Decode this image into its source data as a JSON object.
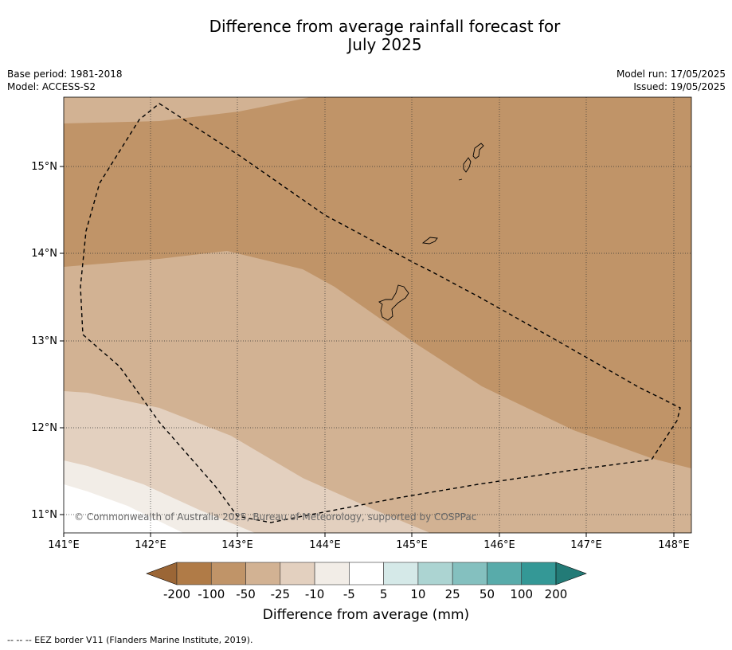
{
  "title_line1": "Difference from average rainfall forecast for",
  "title_line2": "July 2025",
  "meta_left": {
    "base_period": "Base period: 1981-2018",
    "model": "Model: ACCESS-S2"
  },
  "meta_right": {
    "model_run": "Model run: 17/05/2025",
    "issued": "Issued: 19/05/2025"
  },
  "map": {
    "lat_labels": [
      "15°N",
      "14°N",
      "13°N",
      "12°N",
      "11°N"
    ],
    "lon_labels": [
      "141°E",
      "142°E",
      "143°E",
      "144°E",
      "145°E",
      "146°E",
      "147°E",
      "148°E"
    ],
    "copyright": "© Commonwealth of Australia 2025, Bureau of Meteorology, supported by COSPPac"
  },
  "colorbar": {
    "ticks": [
      "-200",
      "-100",
      "-50",
      "-25",
      "-10",
      "-5",
      "5",
      "10",
      "25",
      "50",
      "100",
      "200"
    ],
    "colors": [
      "#9b6636",
      "#b07b47",
      "#c09468",
      "#d2b293",
      "#e3d0bf",
      "#f2ede7",
      "#ffffff",
      "#d5e9e8",
      "#acd4d2",
      "#84c0bf",
      "#58abaa",
      "#349896",
      "#237b77"
    ],
    "label": "Difference from average (mm)"
  },
  "footnote": "--  --  -- EEZ border V11 (Flanders Marine Institute, 2019)."
}
